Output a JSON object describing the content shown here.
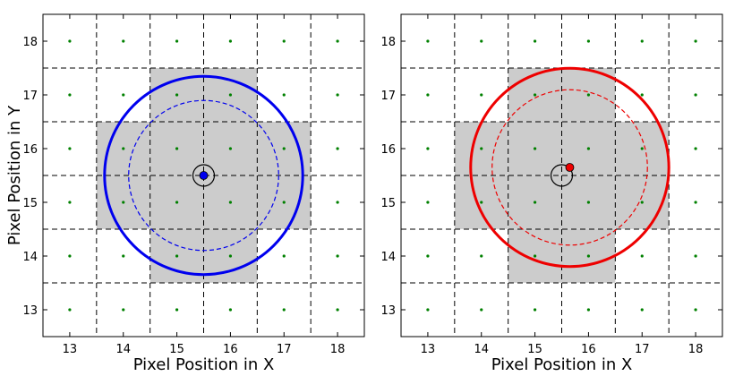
{
  "chart_data": [
    {
      "type": "scatter",
      "xlabel": "Pixel Position in X",
      "ylabel": "Pixel Position in Y",
      "xlim": [
        12.5,
        18.5
      ],
      "ylim": [
        12.5,
        18.5
      ],
      "x_ticks": [
        "13",
        "14",
        "15",
        "16",
        "17",
        "18"
      ],
      "y_ticks": [
        "13",
        "14",
        "15",
        "16",
        "17",
        "18"
      ],
      "grid": true,
      "accent_color": "#0000ee",
      "gray_pixels": [
        [
          15,
          17
        ],
        [
          16,
          17
        ],
        [
          14,
          16
        ],
        [
          15,
          16
        ],
        [
          16,
          16
        ],
        [
          17,
          16
        ],
        [
          14,
          15
        ],
        [
          15,
          15
        ],
        [
          16,
          15
        ],
        [
          17,
          15
        ],
        [
          15,
          14
        ],
        [
          16,
          14
        ]
      ],
      "reference_center": [
        15.5,
        15.5
      ],
      "reference_radius": 0.2,
      "measured_center": [
        15.5,
        15.5
      ],
      "aperture_outer_radius": 1.85,
      "aperture_inner_radius": 1.4
    },
    {
      "type": "scatter",
      "xlabel": "Pixel Position in X",
      "ylabel": "",
      "xlim": [
        12.5,
        18.5
      ],
      "ylim": [
        12.5,
        18.5
      ],
      "x_ticks": [
        "13",
        "14",
        "15",
        "16",
        "17",
        "18"
      ],
      "y_ticks": [
        "13",
        "14",
        "15",
        "16",
        "17",
        "18"
      ],
      "grid": true,
      "accent_color": "#ee0000",
      "gray_pixels": [
        [
          15,
          17
        ],
        [
          16,
          17
        ],
        [
          14,
          16
        ],
        [
          15,
          16
        ],
        [
          16,
          16
        ],
        [
          17,
          16
        ],
        [
          14,
          15
        ],
        [
          15,
          15
        ],
        [
          16,
          15
        ],
        [
          17,
          15
        ],
        [
          15,
          14
        ],
        [
          16,
          14
        ]
      ],
      "reference_center": [
        15.5,
        15.5
      ],
      "reference_radius": 0.2,
      "measured_center": [
        15.65,
        15.65
      ],
      "aperture_outer_radius": 1.85,
      "aperture_inner_radius": 1.45
    }
  ]
}
